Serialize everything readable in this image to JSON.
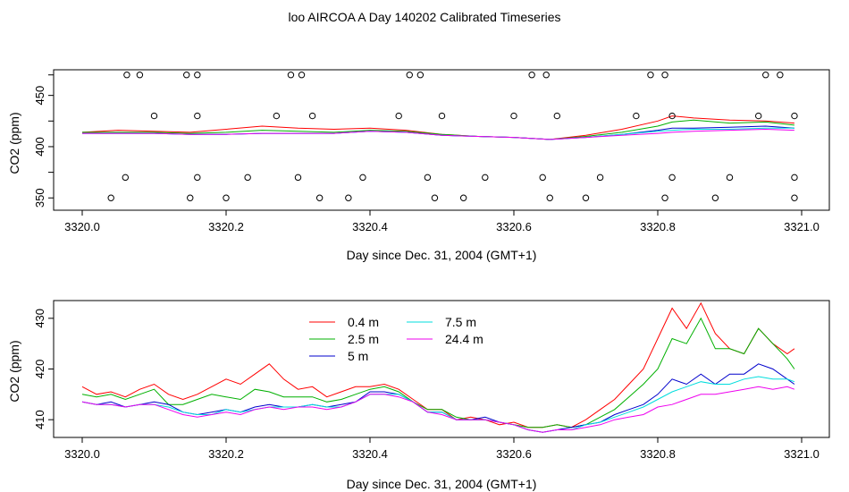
{
  "title": "loo AIRCOA A  Day 140202  Calibrated Timeseries",
  "chart_data": [
    {
      "type": "line",
      "xlabel": "Day since Dec. 31, 2004 (GMT+1)",
      "ylabel": "CO2 (ppm)",
      "xlim": [
        3319.98,
        3321.02
      ],
      "ylim": [
        338,
        475
      ],
      "xticks": [
        "3320.0",
        "3320.2",
        "3320.4",
        "3320.6",
        "3320.8",
        "3321.0"
      ],
      "yticks": [
        "350",
        "400",
        "450"
      ],
      "grid": false,
      "legend": "none",
      "series": [
        {
          "color": "#ff0000",
          "x": [
            3320.0,
            3320.05,
            3320.1,
            3320.15,
            3320.2,
            3320.25,
            3320.3,
            3320.35,
            3320.4,
            3320.45,
            3320.5,
            3320.55,
            3320.6,
            3320.65,
            3320.7,
            3320.75,
            3320.8,
            3320.82,
            3320.85,
            3320.9,
            3320.95,
            3320.99
          ],
          "values": [
            414,
            416,
            415,
            414,
            417,
            420,
            418,
            417,
            418,
            416,
            412,
            410,
            409,
            407,
            411,
            417,
            425,
            430,
            428,
            426,
            425,
            423
          ]
        },
        {
          "color": "#00b000",
          "x": [
            3320.0,
            3320.05,
            3320.1,
            3320.15,
            3320.2,
            3320.25,
            3320.3,
            3320.35,
            3320.4,
            3320.45,
            3320.5,
            3320.55,
            3320.6,
            3320.65,
            3320.7,
            3320.75,
            3320.8,
            3320.82,
            3320.85,
            3320.9,
            3320.95,
            3320.99
          ],
          "values": [
            414,
            414,
            414,
            413,
            414,
            416,
            415,
            414,
            416,
            415,
            412,
            410,
            409,
            407,
            410,
            414,
            420,
            424,
            426,
            423,
            424,
            421
          ]
        },
        {
          "color": "#0000cc",
          "x": [
            3320.0,
            3320.05,
            3320.1,
            3320.15,
            3320.2,
            3320.25,
            3320.3,
            3320.35,
            3320.4,
            3320.45,
            3320.5,
            3320.55,
            3320.6,
            3320.65,
            3320.7,
            3320.75,
            3320.8,
            3320.82,
            3320.85,
            3320.9,
            3320.95,
            3320.99
          ],
          "values": [
            413,
            413,
            413,
            412,
            412,
            413,
            413,
            413,
            415,
            414,
            411,
            410,
            409,
            407,
            409,
            412,
            416,
            418,
            418,
            419,
            420,
            418
          ]
        },
        {
          "color": "#00dddd",
          "x": [
            3320.0,
            3320.05,
            3320.1,
            3320.15,
            3320.2,
            3320.25,
            3320.3,
            3320.35,
            3320.4,
            3320.45,
            3320.5,
            3320.55,
            3320.6,
            3320.65,
            3320.7,
            3320.75,
            3320.8,
            3320.82,
            3320.85,
            3320.9,
            3320.95,
            3320.99
          ],
          "values": [
            413,
            413,
            413,
            412,
            412,
            413,
            413,
            413,
            415,
            414,
            411,
            410,
            409,
            407,
            409,
            412,
            415,
            416,
            417,
            417,
            418,
            418
          ]
        },
        {
          "color": "#ee00ee",
          "x": [
            3320.0,
            3320.05,
            3320.1,
            3320.15,
            3320.2,
            3320.25,
            3320.3,
            3320.35,
            3320.4,
            3320.45,
            3320.5,
            3320.55,
            3320.6,
            3320.65,
            3320.7,
            3320.75,
            3320.8,
            3320.82,
            3320.85,
            3320.9,
            3320.95,
            3320.99
          ],
          "values": [
            413,
            413,
            413,
            412,
            412,
            413,
            413,
            413,
            415,
            414,
            411,
            410,
            409,
            407,
            409,
            411,
            413,
            414,
            415,
            416,
            417,
            416
          ]
        }
      ],
      "points": [
        {
          "x": 3320.062,
          "y": 470
        },
        {
          "x": 3320.08,
          "y": 470
        },
        {
          "x": 3320.145,
          "y": 470
        },
        {
          "x": 3320.16,
          "y": 470
        },
        {
          "x": 3320.29,
          "y": 470
        },
        {
          "x": 3320.305,
          "y": 470
        },
        {
          "x": 3320.455,
          "y": 470
        },
        {
          "x": 3320.47,
          "y": 470
        },
        {
          "x": 3320.625,
          "y": 470
        },
        {
          "x": 3320.645,
          "y": 470
        },
        {
          "x": 3320.79,
          "y": 470
        },
        {
          "x": 3320.81,
          "y": 470
        },
        {
          "x": 3320.95,
          "y": 470
        },
        {
          "x": 3320.97,
          "y": 470
        },
        {
          "x": 3320.1,
          "y": 430
        },
        {
          "x": 3320.16,
          "y": 430
        },
        {
          "x": 3320.27,
          "y": 430
        },
        {
          "x": 3320.32,
          "y": 430
        },
        {
          "x": 3320.44,
          "y": 430
        },
        {
          "x": 3320.5,
          "y": 430
        },
        {
          "x": 3320.6,
          "y": 430
        },
        {
          "x": 3320.66,
          "y": 430
        },
        {
          "x": 3320.77,
          "y": 430
        },
        {
          "x": 3320.82,
          "y": 430
        },
        {
          "x": 3320.94,
          "y": 430
        },
        {
          "x": 3320.99,
          "y": 430
        },
        {
          "x": 3320.06,
          "y": 370
        },
        {
          "x": 3320.16,
          "y": 370
        },
        {
          "x": 3320.23,
          "y": 370
        },
        {
          "x": 3320.3,
          "y": 370
        },
        {
          "x": 3320.39,
          "y": 370
        },
        {
          "x": 3320.48,
          "y": 370
        },
        {
          "x": 3320.56,
          "y": 370
        },
        {
          "x": 3320.64,
          "y": 370
        },
        {
          "x": 3320.72,
          "y": 370
        },
        {
          "x": 3320.82,
          "y": 370
        },
        {
          "x": 3320.9,
          "y": 370
        },
        {
          "x": 3320.99,
          "y": 370
        },
        {
          "x": 3320.04,
          "y": 350
        },
        {
          "x": 3320.15,
          "y": 350
        },
        {
          "x": 3320.2,
          "y": 350
        },
        {
          "x": 3320.33,
          "y": 350
        },
        {
          "x": 3320.37,
          "y": 350
        },
        {
          "x": 3320.49,
          "y": 350
        },
        {
          "x": 3320.53,
          "y": 350
        },
        {
          "x": 3320.65,
          "y": 350
        },
        {
          "x": 3320.7,
          "y": 350
        },
        {
          "x": 3320.81,
          "y": 350
        },
        {
          "x": 3320.88,
          "y": 350
        },
        {
          "x": 3320.99,
          "y": 350
        }
      ]
    },
    {
      "type": "line",
      "xlabel": "Day since Dec. 31, 2004 (GMT+1)",
      "ylabel": "CO2 (ppm)",
      "xlim": [
        3319.98,
        3321.02
      ],
      "ylim": [
        406.5,
        433.5
      ],
      "xticks": [
        "3320.0",
        "3320.2",
        "3320.4",
        "3320.6",
        "3320.8",
        "3321.0"
      ],
      "yticks": [
        "410",
        "420",
        "430"
      ],
      "grid": false,
      "legend": "top-left, two columns",
      "series": [
        {
          "name": "0.4 m",
          "color": "#ff0000",
          "x": [
            3320.0,
            3320.02,
            3320.04,
            3320.06,
            3320.08,
            3320.1,
            3320.12,
            3320.14,
            3320.16,
            3320.18,
            3320.2,
            3320.22,
            3320.24,
            3320.26,
            3320.28,
            3320.3,
            3320.32,
            3320.34,
            3320.36,
            3320.38,
            3320.4,
            3320.42,
            3320.44,
            3320.46,
            3320.48,
            3320.5,
            3320.52,
            3320.54,
            3320.56,
            3320.58,
            3320.6,
            3320.62,
            3320.64,
            3320.66,
            3320.68,
            3320.7,
            3320.72,
            3320.74,
            3320.76,
            3320.78,
            3320.8,
            3320.82,
            3320.84,
            3320.86,
            3320.88,
            3320.9,
            3320.92,
            3320.94,
            3320.96,
            3320.98,
            3320.99
          ],
          "values": [
            416.5,
            415,
            415.5,
            414.5,
            416,
            417,
            415,
            414,
            415,
            416.5,
            418,
            417,
            419,
            421,
            418,
            416,
            416.5,
            414.5,
            415.5,
            416.5,
            416.5,
            417,
            416,
            414,
            412,
            412,
            410,
            410.5,
            410,
            409,
            409.5,
            408.5,
            408.5,
            409,
            408.5,
            410,
            412,
            414,
            417,
            420,
            426,
            432,
            428,
            433,
            427,
            424,
            423,
            428,
            425,
            423,
            424
          ]
        },
        {
          "name": "2.5 m",
          "color": "#00b000",
          "x": [
            3320.0,
            3320.02,
            3320.04,
            3320.06,
            3320.08,
            3320.1,
            3320.12,
            3320.14,
            3320.16,
            3320.18,
            3320.2,
            3320.22,
            3320.24,
            3320.26,
            3320.28,
            3320.3,
            3320.32,
            3320.34,
            3320.36,
            3320.38,
            3320.4,
            3320.42,
            3320.44,
            3320.46,
            3320.48,
            3320.5,
            3320.52,
            3320.54,
            3320.56,
            3320.58,
            3320.6,
            3320.62,
            3320.64,
            3320.66,
            3320.68,
            3320.7,
            3320.72,
            3320.74,
            3320.76,
            3320.78,
            3320.8,
            3320.82,
            3320.84,
            3320.86,
            3320.88,
            3320.9,
            3320.92,
            3320.94,
            3320.96,
            3320.98,
            3320.99
          ],
          "values": [
            415,
            414.5,
            415,
            414,
            415,
            416,
            413,
            413,
            414,
            415,
            414.5,
            414,
            416,
            415.5,
            414.5,
            414.5,
            414.5,
            413.5,
            414,
            415,
            416,
            416.5,
            415.5,
            413.5,
            412,
            412,
            410.5,
            410,
            410,
            409.5,
            409,
            408.5,
            408.5,
            409,
            408.5,
            409,
            410.5,
            412,
            414.5,
            417,
            420,
            426,
            425,
            430,
            424,
            424,
            423,
            428,
            425,
            422,
            420
          ]
        },
        {
          "name": "5 m",
          "color": "#0000cc",
          "x": [
            3320.0,
            3320.02,
            3320.04,
            3320.06,
            3320.08,
            3320.1,
            3320.12,
            3320.14,
            3320.16,
            3320.18,
            3320.2,
            3320.22,
            3320.24,
            3320.26,
            3320.28,
            3320.3,
            3320.32,
            3320.34,
            3320.36,
            3320.38,
            3320.4,
            3320.42,
            3320.44,
            3320.46,
            3320.48,
            3320.5,
            3320.52,
            3320.54,
            3320.56,
            3320.58,
            3320.6,
            3320.62,
            3320.64,
            3320.66,
            3320.68,
            3320.7,
            3320.72,
            3320.74,
            3320.76,
            3320.78,
            3320.8,
            3320.82,
            3320.84,
            3320.86,
            3320.88,
            3320.9,
            3320.92,
            3320.94,
            3320.96,
            3320.98,
            3320.99
          ],
          "values": [
            413.5,
            413,
            413.5,
            412.5,
            413,
            413.5,
            413,
            411.5,
            411,
            411.5,
            412,
            411.5,
            412.5,
            413,
            412.5,
            412.5,
            413,
            412.5,
            413,
            413.5,
            415.5,
            415.5,
            415,
            413.5,
            411.5,
            411.5,
            410,
            410,
            410.5,
            409.5,
            409,
            408,
            407.5,
            408,
            408.5,
            409,
            409.5,
            411,
            412,
            413,
            415,
            418,
            417,
            419,
            417,
            419,
            419,
            421,
            420,
            418,
            417
          ]
        },
        {
          "name": "7.5 m",
          "color": "#00dddd",
          "x": [
            3320.0,
            3320.02,
            3320.04,
            3320.06,
            3320.08,
            3320.1,
            3320.12,
            3320.14,
            3320.16,
            3320.18,
            3320.2,
            3320.22,
            3320.24,
            3320.26,
            3320.28,
            3320.3,
            3320.32,
            3320.34,
            3320.36,
            3320.38,
            3320.4,
            3320.42,
            3320.44,
            3320.46,
            3320.48,
            3320.5,
            3320.52,
            3320.54,
            3320.56,
            3320.58,
            3320.6,
            3320.62,
            3320.64,
            3320.66,
            3320.68,
            3320.7,
            3320.72,
            3320.74,
            3320.76,
            3320.78,
            3320.8,
            3320.82,
            3320.84,
            3320.86,
            3320.88,
            3320.9,
            3320.92,
            3320.94,
            3320.96,
            3320.98,
            3320.99
          ],
          "values": [
            413.5,
            413,
            413,
            412.5,
            413,
            413,
            412.5,
            411.5,
            411,
            411,
            412,
            411.5,
            412,
            412.5,
            412.5,
            412.5,
            413,
            412.5,
            412.5,
            413.5,
            415,
            415,
            415,
            413.5,
            411.5,
            411.5,
            410,
            410,
            410,
            409.5,
            409,
            408,
            407.5,
            408,
            408,
            409,
            409.5,
            410.5,
            411.5,
            412.5,
            414,
            415.5,
            416.5,
            417.5,
            417,
            417,
            418,
            418.5,
            418,
            418,
            417.5
          ]
        },
        {
          "name": "24.4 m",
          "color": "#ee00ee",
          "x": [
            3320.0,
            3320.02,
            3320.04,
            3320.06,
            3320.08,
            3320.1,
            3320.12,
            3320.14,
            3320.16,
            3320.18,
            3320.2,
            3320.22,
            3320.24,
            3320.26,
            3320.28,
            3320.3,
            3320.32,
            3320.34,
            3320.36,
            3320.38,
            3320.4,
            3320.42,
            3320.44,
            3320.46,
            3320.48,
            3320.5,
            3320.52,
            3320.54,
            3320.56,
            3320.58,
            3320.6,
            3320.62,
            3320.64,
            3320.66,
            3320.68,
            3320.7,
            3320.72,
            3320.74,
            3320.76,
            3320.78,
            3320.8,
            3320.82,
            3320.84,
            3320.86,
            3320.88,
            3320.9,
            3320.92,
            3320.94,
            3320.96,
            3320.98,
            3320.99
          ],
          "values": [
            413.5,
            413,
            413,
            412.5,
            413,
            413,
            412,
            411,
            410.5,
            411,
            411.5,
            411,
            412,
            412.5,
            412,
            412.5,
            412.5,
            412,
            412.5,
            413.5,
            415,
            415,
            414.5,
            413.5,
            411.5,
            411,
            410,
            410,
            410,
            409.5,
            409,
            408,
            407.5,
            408,
            408,
            408.5,
            409,
            410,
            410.5,
            411,
            412.5,
            413,
            414,
            415,
            415,
            415.5,
            416,
            416.5,
            416,
            416.5,
            416
          ]
        }
      ]
    }
  ]
}
